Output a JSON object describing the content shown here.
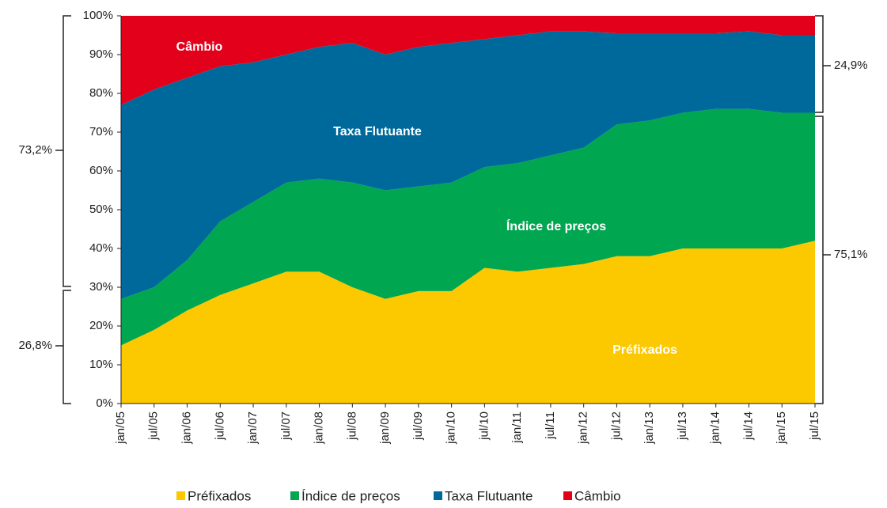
{
  "chart_data": {
    "type": "stacked_area",
    "categories": [
      "jan/05",
      "jul/05",
      "jan/06",
      "jul/06",
      "jan/07",
      "jul/07",
      "jan/08",
      "jul/08",
      "jan/09",
      "jul/09",
      "jan/10",
      "jul/10",
      "jan/11",
      "jul/11",
      "jan/12",
      "jul/12",
      "jan/13",
      "jul/13",
      "jan/14",
      "jul/14",
      "jan/15",
      "jul/15"
    ],
    "series": [
      {
        "name": "Préfixados",
        "color": "#fcc800",
        "values": [
          15,
          19,
          24,
          28,
          31,
          34,
          34,
          30,
          27,
          29,
          29,
          35,
          34,
          35,
          36,
          38,
          38,
          40,
          40,
          40,
          40,
          42
        ]
      },
      {
        "name": "Índice de preços",
        "color": "#00a650",
        "values": [
          12,
          11,
          13,
          19,
          21,
          23,
          24,
          27,
          28,
          27,
          28,
          26,
          28,
          29,
          30,
          34,
          35,
          35,
          36,
          36,
          35,
          33
        ]
      },
      {
        "name": "Taxa Flutuante",
        "color": "#00699b",
        "values": [
          50,
          51,
          47,
          40,
          36,
          33,
          34,
          36,
          35,
          36,
          36,
          33,
          33,
          32,
          30,
          23.5,
          22.5,
          20.5,
          19.5,
          20,
          20,
          20
        ]
      },
      {
        "name": "Câmbio",
        "color": "#e2001a",
        "values": [
          23,
          19,
          16,
          13,
          12,
          10,
          8,
          7,
          10,
          8,
          7,
          6,
          5,
          4,
          4,
          4.5,
          4.5,
          4.5,
          4.5,
          4,
          5,
          5
        ]
      }
    ],
    "ylim": [
      0,
      100
    ],
    "yticks": [
      {
        "value": 0,
        "label": "0%"
      },
      {
        "value": 10,
        "label": "10%"
      },
      {
        "value": 20,
        "label": "20%"
      },
      {
        "value": 30,
        "label": "30%"
      },
      {
        "value": 40,
        "label": "40%"
      },
      {
        "value": 50,
        "label": "50%"
      },
      {
        "value": 60,
        "label": "60%"
      },
      {
        "value": 70,
        "label": "70%"
      },
      {
        "value": 80,
        "label": "80%"
      },
      {
        "value": 90,
        "label": "90%"
      },
      {
        "value": 100,
        "label": "100%"
      }
    ],
    "annotations": [
      "73,2%",
      "26,8%",
      "24,9%",
      "75,1%"
    ],
    "legend": "bottom"
  }
}
